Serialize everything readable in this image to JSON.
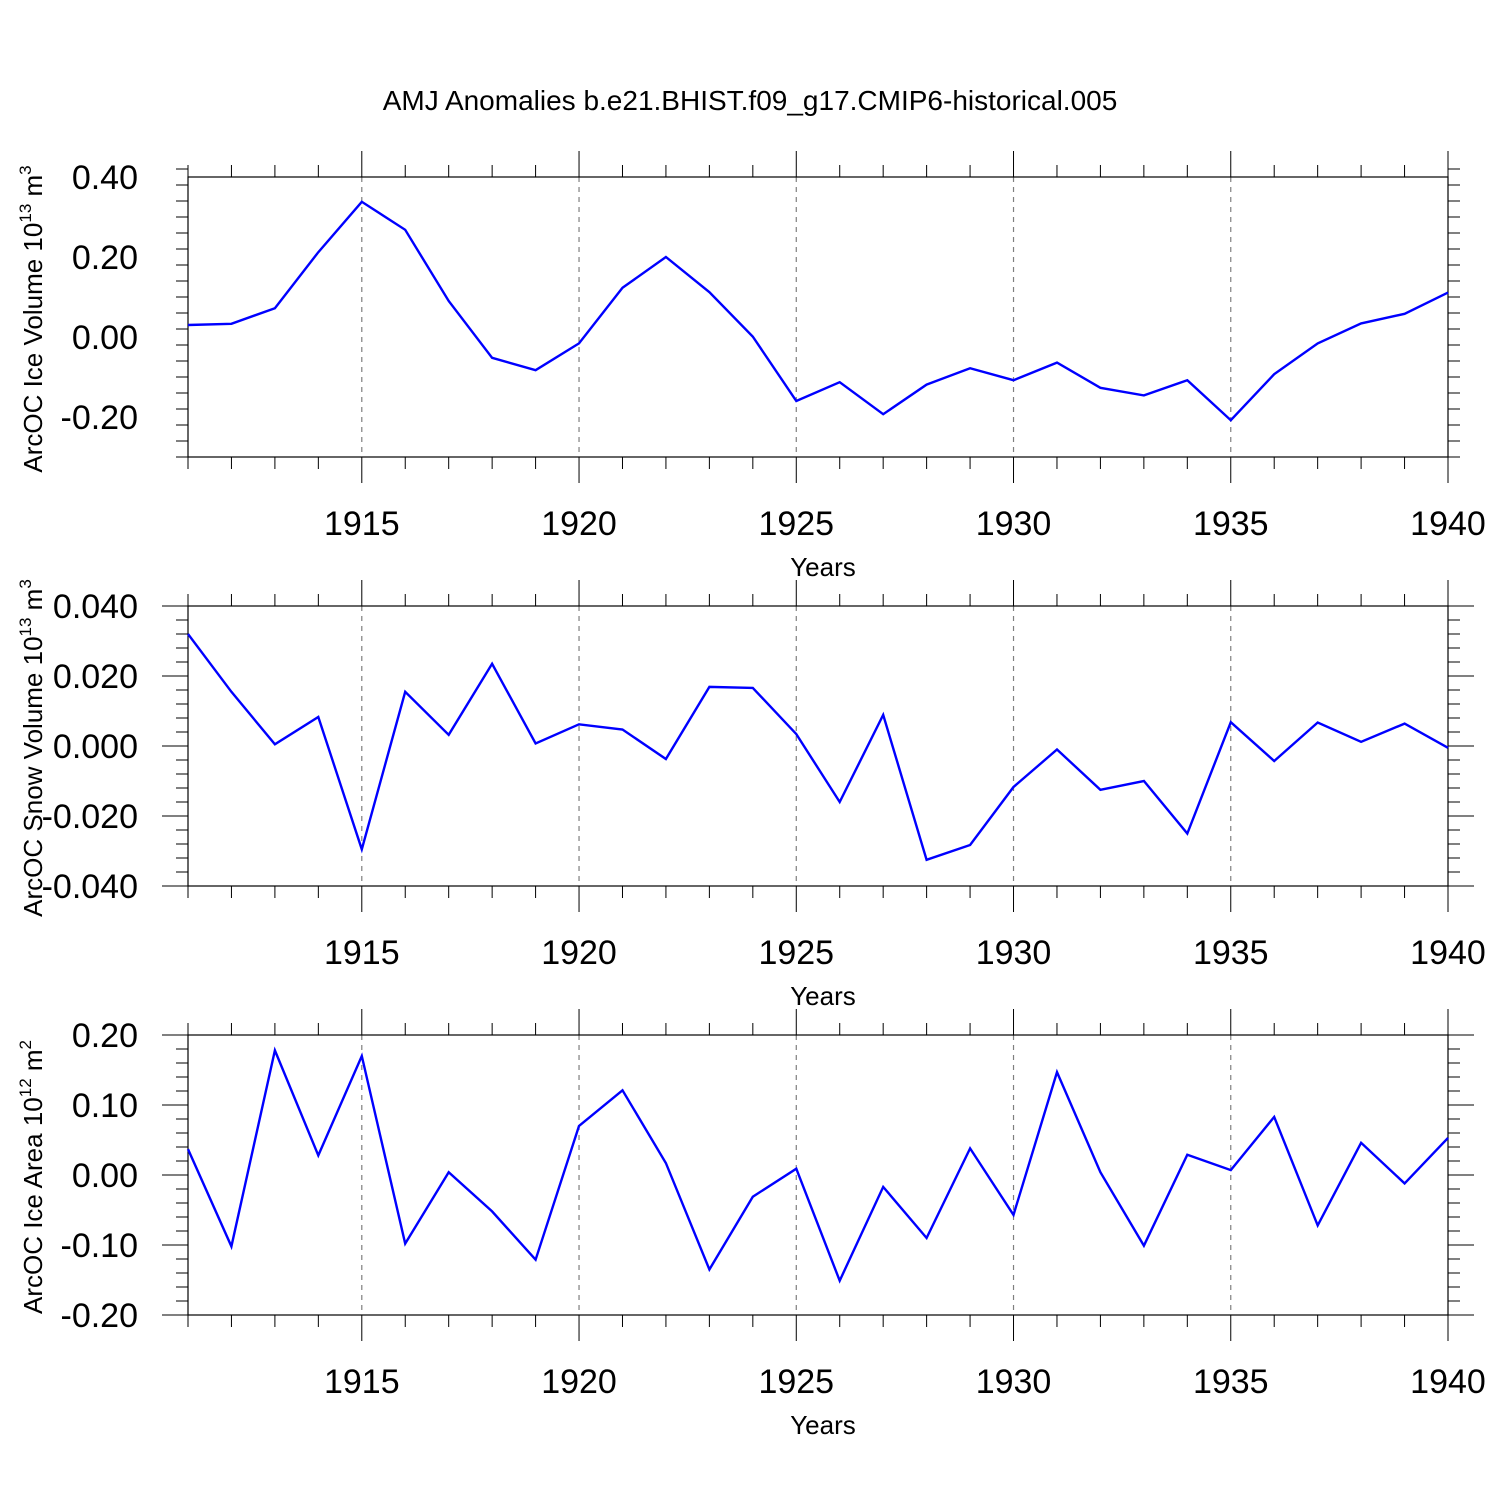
{
  "title": "AMJ Anomalies b.e21.BHIST.f09_g17.CMIP6-historical.005",
  "colors": {
    "line": "#0000ff",
    "axis": "#000000",
    "gridline": "#7f7f7f"
  },
  "chart_data": [
    {
      "type": "line",
      "ylabel": {
        "text": "ArcOC Ice Volume 10",
        "sup": "13",
        "unit": " m",
        "unit_sup": "3"
      },
      "xlabel": "Years",
      "xlim": [
        1911,
        1940
      ],
      "ylim": [
        -0.3,
        0.4
      ],
      "xticks": [
        1915,
        1920,
        1925,
        1930,
        1935,
        1940
      ],
      "xtick_labels": [
        "1915",
        "1920",
        "1925",
        "1930",
        "1935",
        "1940"
      ],
      "yticks": [
        -0.2,
        0.0,
        0.2,
        0.4
      ],
      "ytick_labels": [
        "-0.20",
        "0.00",
        "0.20",
        "0.40"
      ],
      "x": [
        1911,
        1912,
        1913,
        1914,
        1915,
        1916,
        1917,
        1918,
        1919,
        1920,
        1921,
        1922,
        1923,
        1924,
        1925,
        1926,
        1927,
        1928,
        1929,
        1930,
        1931,
        1932,
        1933,
        1934,
        1935,
        1936,
        1937,
        1938,
        1939,
        1940
      ],
      "series": [
        {
          "values": [
            0.03,
            0.033,
            0.072,
            0.212,
            0.338,
            0.268,
            0.09,
            -0.052,
            -0.083,
            -0.016,
            0.123,
            0.2,
            0.112,
            0.001,
            -0.16,
            -0.113,
            -0.193,
            -0.119,
            -0.078,
            -0.108,
            -0.064,
            -0.127,
            -0.146,
            -0.108,
            -0.208,
            -0.093,
            -0.016,
            0.034,
            0.058,
            0.111
          ]
        }
      ],
      "grid": "vertical dashed at major ticks"
    },
    {
      "type": "line",
      "ylabel": {
        "text": "ArcOC Snow Volume 10",
        "sup": "13",
        "unit": " m",
        "unit_sup": "3"
      },
      "xlabel": "Years",
      "xlim": [
        1911,
        1940
      ],
      "ylim": [
        -0.04,
        0.04
      ],
      "xticks": [
        1915,
        1920,
        1925,
        1930,
        1935,
        1940
      ],
      "xtick_labels": [
        "1915",
        "1920",
        "1925",
        "1930",
        "1935",
        "1940"
      ],
      "yticks": [
        -0.04,
        -0.02,
        0.0,
        0.02,
        0.04
      ],
      "ytick_labels": [
        "-0.040",
        "-0.020",
        "0.000",
        "0.020",
        "0.040"
      ],
      "x": [
        1911,
        1912,
        1913,
        1914,
        1915,
        1916,
        1917,
        1918,
        1919,
        1920,
        1921,
        1922,
        1923,
        1924,
        1925,
        1926,
        1927,
        1928,
        1929,
        1930,
        1931,
        1932,
        1933,
        1934,
        1935,
        1936,
        1937,
        1938,
        1939,
        1940
      ],
      "series": [
        {
          "values": [
            0.032,
            0.0155,
            0.0005,
            0.0083,
            -0.0295,
            0.0155,
            0.0032,
            0.0235,
            0.0007,
            0.0062,
            0.0047,
            -0.0037,
            0.0169,
            0.0166,
            0.0034,
            -0.016,
            0.0089,
            -0.0325,
            -0.0283,
            -0.0117,
            -0.001,
            -0.0125,
            -0.01,
            -0.025,
            0.0068,
            -0.0043,
            0.0067,
            0.0012,
            0.0064,
            -0.0005
          ]
        }
      ],
      "grid": "vertical dashed at major ticks"
    },
    {
      "type": "line",
      "ylabel": {
        "text": "ArcOC Ice Area 10",
        "sup": "12",
        "unit": " m",
        "unit_sup": "2"
      },
      "xlabel": "Years",
      "xlim": [
        1911,
        1940
      ],
      "ylim": [
        -0.2,
        0.2
      ],
      "xticks": [
        1915,
        1920,
        1925,
        1930,
        1935,
        1940
      ],
      "xtick_labels": [
        "1915",
        "1920",
        "1925",
        "1930",
        "1935",
        "1940"
      ],
      "yticks": [
        -0.2,
        -0.1,
        0.0,
        0.1,
        0.2
      ],
      "ytick_labels": [
        "-0.20",
        "-0.10",
        "0.00",
        "0.10",
        "0.20"
      ],
      "x": [
        1911,
        1912,
        1913,
        1914,
        1915,
        1916,
        1917,
        1918,
        1919,
        1920,
        1921,
        1922,
        1923,
        1924,
        1925,
        1926,
        1927,
        1928,
        1929,
        1930,
        1931,
        1932,
        1933,
        1934,
        1935,
        1936,
        1937,
        1938,
        1939,
        1940
      ],
      "series": [
        {
          "values": [
            0.037,
            -0.102,
            0.178,
            0.028,
            0.17,
            -0.098,
            0.004,
            -0.052,
            -0.121,
            0.07,
            0.121,
            0.017,
            -0.135,
            -0.031,
            0.009,
            -0.151,
            -0.017,
            -0.09,
            0.038,
            -0.057,
            0.147,
            0.004,
            -0.101,
            0.029,
            0.007,
            0.083,
            -0.072,
            0.046,
            -0.012,
            0.053
          ]
        }
      ],
      "grid": "vertical dashed at major ticks"
    }
  ]
}
